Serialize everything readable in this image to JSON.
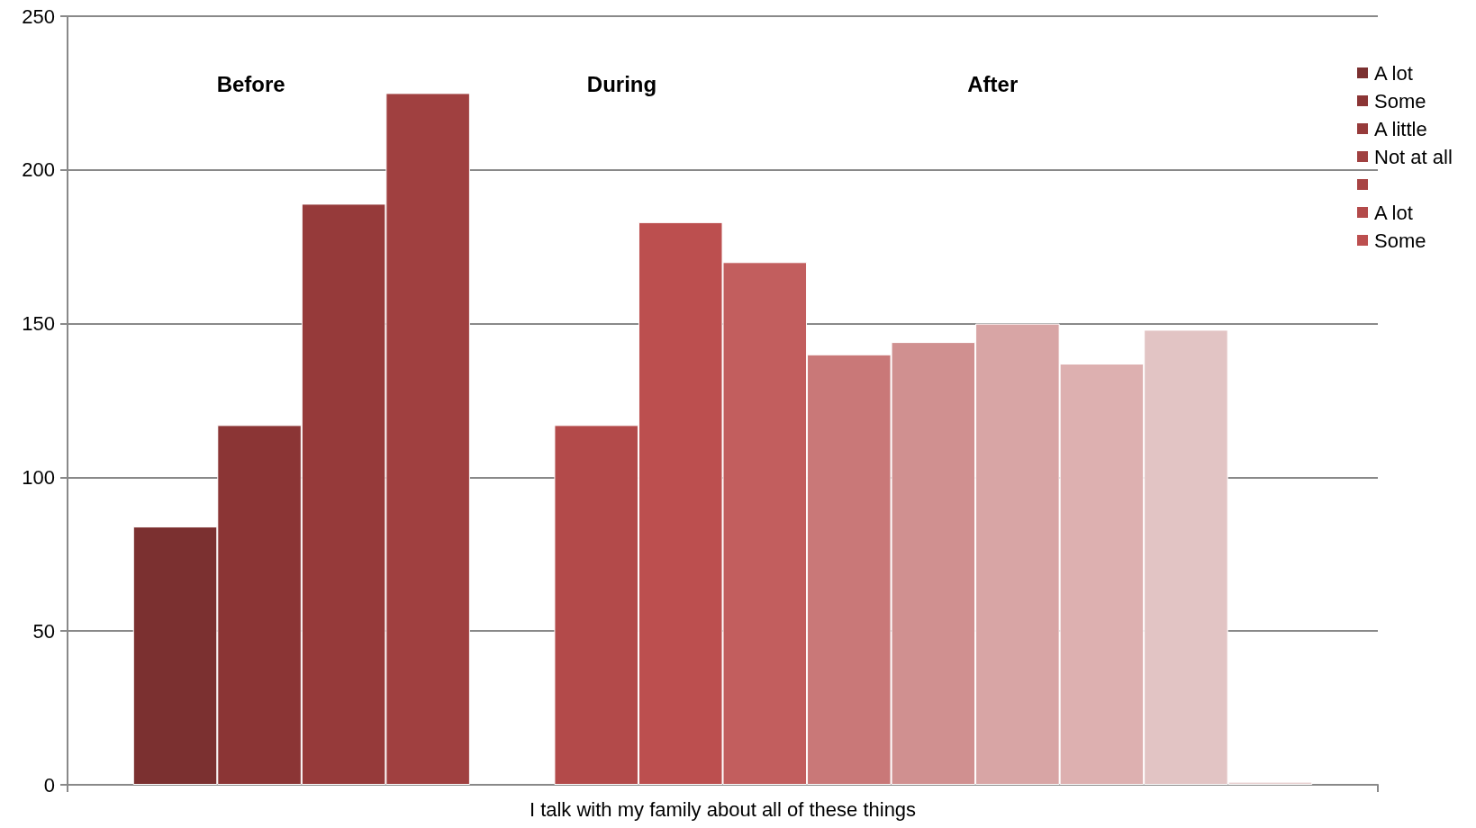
{
  "chart_data": {
    "type": "bar",
    "categories": [
      "I talk with my family about all of these things"
    ],
    "series": [
      {
        "name": "A lot",
        "color": "#7b3030",
        "values": [
          84
        ]
      },
      {
        "name": "Some",
        "color": "#8b3535",
        "values": [
          117
        ]
      },
      {
        "name": "A little",
        "color": "#963a3a",
        "values": [
          189
        ]
      },
      {
        "name": "Not at all",
        "color": "#a04040",
        "values": [
          225
        ]
      },
      {
        "color": "#a84444",
        "values": [
          null
        ]
      },
      {
        "name": "A lot",
        "color": "#b34a4a",
        "values": [
          117
        ]
      },
      {
        "name": "Some",
        "color": "#bc4f4f",
        "values": [
          183
        ]
      },
      {
        "color": "#c25e5e",
        "values": [
          170
        ]
      },
      {
        "color": "#c97878",
        "values": [
          140
        ]
      },
      {
        "color": "#d09090",
        "values": [
          144
        ]
      },
      {
        "color": "#d8a5a5",
        "values": [
          150
        ]
      },
      {
        "color": "#ddb0b0",
        "values": [
          137
        ]
      },
      {
        "color": "#e2c4c4",
        "values": [
          148
        ]
      },
      {
        "color": "#e8d0d0",
        "values": [
          1
        ]
      }
    ],
    "annotations": [
      "Before",
      "During",
      "After"
    ],
    "ylim": [
      0,
      250
    ],
    "yticks": [
      0,
      50,
      100,
      150,
      200,
      250
    ],
    "grid": "y",
    "legend": "right"
  }
}
